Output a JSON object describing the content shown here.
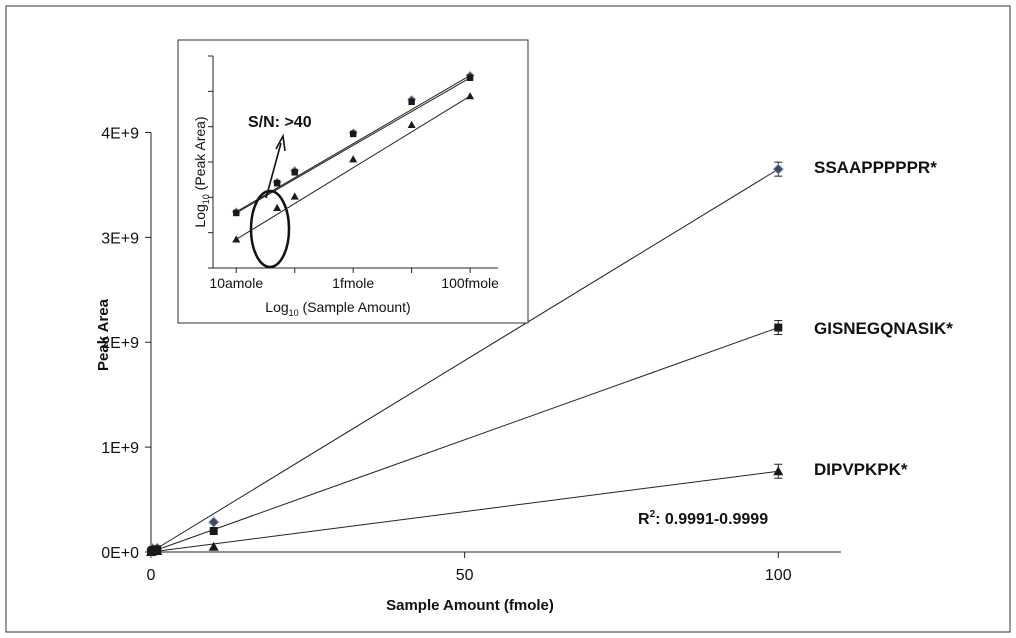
{
  "chart_data": [
    {
      "type": "scatter",
      "title": "",
      "xlabel": "Sample Amount (fmole)",
      "ylabel": "Peak Area",
      "xlim": [
        0,
        110
      ],
      "ylim": [
        0,
        4500000000
      ],
      "x_ticks": [
        0,
        50,
        100
      ],
      "x_tick_labels": [
        "0",
        "50",
        "100"
      ],
      "y_ticks": [
        0,
        1000000000,
        2000000000,
        3000000000,
        4000000000
      ],
      "y_tick_labels": [
        "0E+0",
        "1E+9",
        "2E+9",
        "3E+9",
        "4E+9"
      ],
      "grid": false,
      "legend": "none",
      "trendlines": true,
      "series": [
        {
          "name": "SSAAPPPPPR*",
          "marker": "diamond",
          "x": [
            0.01,
            0.1,
            0.25,
            1,
            10,
            100
          ],
          "y": [
            1500000,
            13000000,
            32000000,
            36000000,
            285000000,
            3650000000
          ]
        },
        {
          "name": "GISNEGQNASIK*",
          "marker": "square",
          "x": [
            0.01,
            0.1,
            0.25,
            1,
            10,
            100
          ],
          "y": [
            1000000,
            9000000,
            20000000,
            25000000,
            200000000,
            2140000000
          ]
        },
        {
          "name": "DIPVPKPK*",
          "marker": "triangle",
          "x": [
            0.01,
            0.1,
            0.25,
            1,
            10,
            100
          ],
          "y": [
            400000,
            3500000,
            8000000,
            9000000,
            50000000,
            770000000
          ]
        }
      ],
      "annotations": [
        "R²: 0.9991-0.9999"
      ]
    },
    {
      "type": "scatter",
      "title": "",
      "xlabel": "Log₁₀ (Sample Amount)",
      "ylabel": "Log₁₀ (Peak Area)",
      "x_scale": "log",
      "x_tick_labels": [
        "10amole",
        "1fmole",
        "100fmole"
      ],
      "xlim_fmol": [
        0.004,
        300
      ],
      "grid": false,
      "trendlines": true,
      "series": [
        {
          "marker": "diamond",
          "x_fmol": [
            0.01,
            0.05,
            0.1,
            1,
            10,
            100
          ],
          "y_log": [
            6.18,
            6.7,
            6.9,
            7.56,
            8.14,
            8.56
          ]
        },
        {
          "marker": "square",
          "x_fmol": [
            0.01,
            0.05,
            0.1,
            1,
            10,
            100
          ],
          "y_log": [
            6.16,
            6.68,
            6.87,
            7.54,
            8.1,
            8.52
          ]
        },
        {
          "marker": "triangle",
          "x_fmol": [
            0.01,
            0.05,
            0.1,
            1,
            10,
            100
          ],
          "y_log": [
            5.7,
            6.25,
            6.45,
            7.1,
            7.7,
            8.2
          ]
        }
      ],
      "annotations": [
        "S/N: >40"
      ]
    }
  ],
  "main_labels": {
    "series_labels": [
      "SSAAPPPPPR*",
      "GISNEGQNASIK*",
      "DIPVPKPK*"
    ],
    "r2_prefix": "R",
    "r2_sup": "2",
    "r2_value": ": 0.9991-0.9999"
  },
  "inset_labels": {
    "log_prefix": "Log",
    "log_sub": "10",
    "x_suffix": " (Sample Amount)",
    "y_suffix": " (Peak Area)",
    "sn_text": "S/N: >40"
  },
  "colors": {
    "diamond_series": "#3b4a6b",
    "square_series": "#1a1a1a",
    "triangle_series": "#1a1a1a",
    "axis": "#222222"
  }
}
